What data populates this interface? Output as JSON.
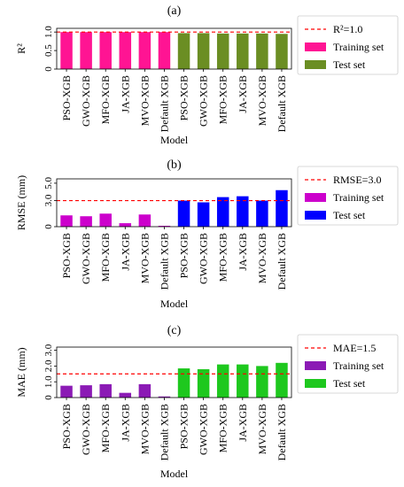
{
  "chart_data": [
    {
      "type": "bar",
      "panel_label": "(a)",
      "xlabel": "Model",
      "ylabel": "R²",
      "ylim": [
        0,
        1.1
      ],
      "yticks": [
        "0",
        "0.5",
        "1.0"
      ],
      "ytick_values": [
        0,
        0.5,
        1.0
      ],
      "categories": [
        "PSO-XGB",
        "GWO-XGB",
        "MFO-XGB",
        "JA-XGB",
        "MVO-XGB",
        "Default XGB",
        "PSO-XGB",
        "GWO-XGB",
        "MFO-XGB",
        "JA-XGB",
        "MVO-XGB",
        "Default XGB"
      ],
      "series": [
        {
          "name": "Training set",
          "color": "#ff1493",
          "values": [
            1.0,
            1.0,
            1.0,
            1.0,
            1.0,
            1.0,
            null,
            null,
            null,
            null,
            null,
            null
          ]
        },
        {
          "name": "Test set",
          "color": "#6b8e23",
          "values": [
            null,
            null,
            null,
            null,
            null,
            null,
            0.97,
            0.97,
            0.96,
            0.96,
            0.96,
            0.95
          ]
        }
      ],
      "reference_line": {
        "value": 1.0,
        "label": "R²=1.0",
        "color": "#ff0000",
        "style": "dashed"
      },
      "legend_position": "right",
      "grid": false
    },
    {
      "type": "bar",
      "panel_label": "(b)",
      "xlabel": "Model",
      "ylabel": "RMSE (mm)",
      "ylim": [
        0,
        5.5
      ],
      "yticks": [
        "0",
        "3.0",
        "5.0"
      ],
      "ytick_values": [
        0,
        3.0,
        5.0
      ],
      "categories": [
        "PSO-XGB",
        "GWO-XGB",
        "MFO-XGB",
        "JA-XGB",
        "MVO-XGB",
        "Default XGB",
        "PSO-XGB",
        "GWO-XGB",
        "MFO-XGB",
        "JA-XGB",
        "MVO-XGB",
        "Default XGB"
      ],
      "series": [
        {
          "name": "Training set",
          "color": "#cc00cc",
          "values": [
            1.3,
            1.2,
            1.5,
            0.4,
            1.4,
            0.1,
            null,
            null,
            null,
            null,
            null,
            null
          ]
        },
        {
          "name": "Test set",
          "color": "#0000ff",
          "values": [
            null,
            null,
            null,
            null,
            null,
            null,
            3.0,
            2.8,
            3.4,
            3.5,
            3.0,
            4.2
          ]
        }
      ],
      "reference_line": {
        "value": 3.0,
        "label": "RMSE=3.0",
        "color": "#ff0000",
        "style": "dashed"
      },
      "legend_position": "right",
      "grid": false
    },
    {
      "type": "bar",
      "panel_label": "(c)",
      "xlabel": "Model",
      "ylabel": "MAE (mm)",
      "ylim": [
        0,
        3.2
      ],
      "yticks": [
        "0",
        "1.0",
        "2.0",
        "3.0"
      ],
      "ytick_values": [
        0,
        1.0,
        2.0,
        3.0
      ],
      "categories": [
        "PSO-XGB",
        "GWO-XGB",
        "MFO-XGB",
        "JA-XGB",
        "MVO-XGB",
        "Default XGB",
        "PSO-XGB",
        "GWO-XGB",
        "MFO-XGB",
        "JA-XGB",
        "MVO-XGB",
        "Default XGB"
      ],
      "series": [
        {
          "name": "Training set",
          "color": "#8b1ab5",
          "values": [
            0.75,
            0.78,
            0.85,
            0.3,
            0.85,
            0.07,
            null,
            null,
            null,
            null,
            null,
            null
          ]
        },
        {
          "name": "Test set",
          "color": "#1ec81e",
          "values": [
            null,
            null,
            null,
            null,
            null,
            null,
            1.85,
            1.8,
            2.1,
            2.1,
            2.0,
            2.2
          ]
        }
      ],
      "reference_line": {
        "value": 1.5,
        "label": "MAE=1.5",
        "color": "#ff0000",
        "style": "dashed"
      },
      "legend_position": "right",
      "grid": false
    }
  ]
}
